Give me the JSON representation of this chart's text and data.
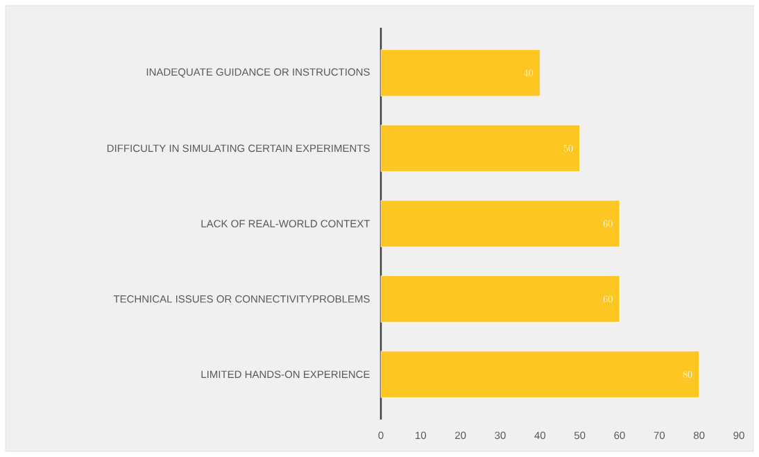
{
  "chart_data": {
    "type": "bar",
    "orientation": "horizontal",
    "categories": [
      "INADEQUATE GUIDANCE OR INSTRUCTIONS",
      "DIFFICULTY IN SIMULATING CERTAIN EXPERIMENTS",
      "LACK OF REAL-WORLD CONTEXT",
      "TECHNICAL ISSUES OR CONNECTIVITYPROBLEMS",
      "LIMITED HANDS-ON EXPERIENCE"
    ],
    "values": [
      40,
      50,
      60,
      60,
      80
    ],
    "color": "#fdc623",
    "xlim": [
      0,
      90
    ],
    "xticks": [
      0,
      10,
      20,
      30,
      40,
      50,
      60,
      70,
      80,
      90
    ],
    "data_labels": true
  }
}
